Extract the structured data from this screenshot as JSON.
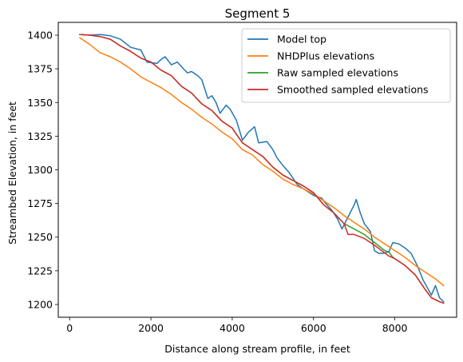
{
  "chart_data": {
    "type": "line",
    "title": "Segment 5",
    "xlabel": "Distance along stream profile, in feet",
    "ylabel": "Streambed Elevation, in feet",
    "xlim": [
      -280,
      9520
    ],
    "ylim": [
      1190.5,
      1409.5
    ],
    "xticks": [
      0,
      2000,
      4000,
      6000,
      8000
    ],
    "yticks": [
      1200,
      1225,
      1250,
      1275,
      1300,
      1325,
      1350,
      1375,
      1400
    ],
    "grid": false,
    "legend_position": "top-right",
    "series": [
      {
        "name": "Model top",
        "color": "#1f77b4",
        "points": [
          [
            250,
            1400.5
          ],
          [
            500,
            1400
          ],
          [
            750,
            1400.5
          ],
          [
            1000,
            1399.5
          ],
          [
            1250,
            1397
          ],
          [
            1500,
            1391
          ],
          [
            1750,
            1389
          ],
          [
            1900,
            1380
          ],
          [
            2150,
            1379
          ],
          [
            2250,
            1382
          ],
          [
            2350,
            1384
          ],
          [
            2500,
            1378
          ],
          [
            2650,
            1380
          ],
          [
            2800,
            1375
          ],
          [
            2900,
            1372
          ],
          [
            3000,
            1373
          ],
          [
            3150,
            1370
          ],
          [
            3250,
            1367
          ],
          [
            3400,
            1353
          ],
          [
            3500,
            1355
          ],
          [
            3600,
            1350
          ],
          [
            3700,
            1342
          ],
          [
            3850,
            1348
          ],
          [
            3950,
            1345
          ],
          [
            4100,
            1337
          ],
          [
            4250,
            1322
          ],
          [
            4400,
            1328
          ],
          [
            4550,
            1332
          ],
          [
            4650,
            1320
          ],
          [
            4850,
            1321
          ],
          [
            5000,
            1315
          ],
          [
            5100,
            1309
          ],
          [
            5250,
            1303
          ],
          [
            5400,
            1298
          ],
          [
            5600,
            1289
          ],
          [
            5800,
            1285
          ],
          [
            6000,
            1281
          ],
          [
            6200,
            1279
          ],
          [
            6300,
            1275
          ],
          [
            6450,
            1270
          ],
          [
            6600,
            1263
          ],
          [
            6700,
            1256
          ],
          [
            6850,
            1265
          ],
          [
            7000,
            1274
          ],
          [
            7050,
            1278
          ],
          [
            7150,
            1268
          ],
          [
            7250,
            1260
          ],
          [
            7400,
            1254
          ],
          [
            7500,
            1240
          ],
          [
            7600,
            1238
          ],
          [
            7700,
            1238
          ],
          [
            7850,
            1239
          ],
          [
            7950,
            1246
          ],
          [
            8100,
            1245
          ],
          [
            8250,
            1242
          ],
          [
            8400,
            1238
          ],
          [
            8550,
            1229
          ],
          [
            8700,
            1218
          ],
          [
            8900,
            1207
          ],
          [
            9000,
            1214
          ],
          [
            9100,
            1205
          ],
          [
            9200,
            1202
          ]
        ]
      },
      {
        "name": "NHDPlus elevations",
        "color": "#ff7f0e",
        "points": [
          [
            250,
            1398
          ],
          [
            500,
            1393
          ],
          [
            750,
            1387
          ],
          [
            1000,
            1384
          ],
          [
            1250,
            1380
          ],
          [
            1500,
            1375
          ],
          [
            1750,
            1369
          ],
          [
            2000,
            1365
          ],
          [
            2250,
            1361
          ],
          [
            2500,
            1356
          ],
          [
            2750,
            1350
          ],
          [
            3000,
            1345
          ],
          [
            3250,
            1339
          ],
          [
            3500,
            1334
          ],
          [
            3750,
            1328
          ],
          [
            4000,
            1323
          ],
          [
            4250,
            1315
          ],
          [
            4500,
            1311
          ],
          [
            4750,
            1304
          ],
          [
            5000,
            1299
          ],
          [
            5250,
            1293
          ],
          [
            5500,
            1289
          ],
          [
            5750,
            1286
          ],
          [
            6000,
            1282
          ],
          [
            6250,
            1277
          ],
          [
            6500,
            1272
          ],
          [
            6750,
            1266
          ],
          [
            7000,
            1261
          ],
          [
            7250,
            1256
          ],
          [
            7500,
            1250
          ],
          [
            7750,
            1245
          ],
          [
            8000,
            1240
          ],
          [
            8250,
            1235
          ],
          [
            8500,
            1229
          ],
          [
            8750,
            1224
          ],
          [
            9000,
            1219
          ],
          [
            9200,
            1214
          ]
        ]
      },
      {
        "name": "Raw sampled elevations",
        "color": "#2ca02c",
        "points": [
          [
            250,
            1400.5
          ],
          [
            500,
            1400
          ],
          [
            750,
            1399
          ],
          [
            1000,
            1397
          ],
          [
            1250,
            1392
          ],
          [
            1500,
            1388
          ],
          [
            1750,
            1383
          ],
          [
            2000,
            1380
          ],
          [
            2250,
            1374
          ],
          [
            2500,
            1370
          ],
          [
            2750,
            1362
          ],
          [
            3000,
            1357
          ],
          [
            3250,
            1349
          ],
          [
            3500,
            1344
          ],
          [
            3750,
            1336
          ],
          [
            4000,
            1331
          ],
          [
            4250,
            1320
          ],
          [
            4500,
            1315
          ],
          [
            4750,
            1310
          ],
          [
            5000,
            1302
          ],
          [
            5250,
            1296
          ],
          [
            5500,
            1292
          ],
          [
            5750,
            1288
          ],
          [
            6000,
            1283
          ],
          [
            6250,
            1274
          ],
          [
            6500,
            1268
          ],
          [
            6750,
            1260
          ],
          [
            7000,
            1256
          ],
          [
            7250,
            1252
          ],
          [
            7500,
            1246
          ],
          [
            7750,
            1240
          ],
          [
            7850,
            1239
          ],
          [
            7950,
            1235
          ],
          [
            8250,
            1229
          ],
          [
            8500,
            1222
          ],
          [
            8750,
            1211
          ],
          [
            8900,
            1205
          ],
          [
            9100,
            1202
          ],
          [
            9200,
            1201
          ]
        ]
      },
      {
        "name": "Smoothed sampled elevations",
        "color": "#d62728",
        "points": [
          [
            250,
            1400.5
          ],
          [
            500,
            1400
          ],
          [
            750,
            1399
          ],
          [
            1000,
            1397
          ],
          [
            1250,
            1392
          ],
          [
            1500,
            1388
          ],
          [
            1750,
            1383
          ],
          [
            2000,
            1380
          ],
          [
            2250,
            1374
          ],
          [
            2500,
            1370
          ],
          [
            2750,
            1362
          ],
          [
            3000,
            1357
          ],
          [
            3250,
            1349
          ],
          [
            3500,
            1344
          ],
          [
            3750,
            1336
          ],
          [
            4000,
            1331
          ],
          [
            4250,
            1320
          ],
          [
            4500,
            1315
          ],
          [
            4750,
            1310
          ],
          [
            5000,
            1302
          ],
          [
            5250,
            1296
          ],
          [
            5500,
            1292
          ],
          [
            5750,
            1288
          ],
          [
            6000,
            1283
          ],
          [
            6250,
            1274
          ],
          [
            6500,
            1268
          ],
          [
            6750,
            1260
          ],
          [
            6850,
            1252
          ],
          [
            7000,
            1252
          ],
          [
            7250,
            1249
          ],
          [
            7500,
            1244
          ],
          [
            7850,
            1236
          ],
          [
            8000,
            1234
          ],
          [
            8250,
            1229
          ],
          [
            8500,
            1222
          ],
          [
            8750,
            1211
          ],
          [
            8900,
            1205
          ],
          [
            9100,
            1202
          ],
          [
            9200,
            1201
          ]
        ]
      }
    ]
  }
}
